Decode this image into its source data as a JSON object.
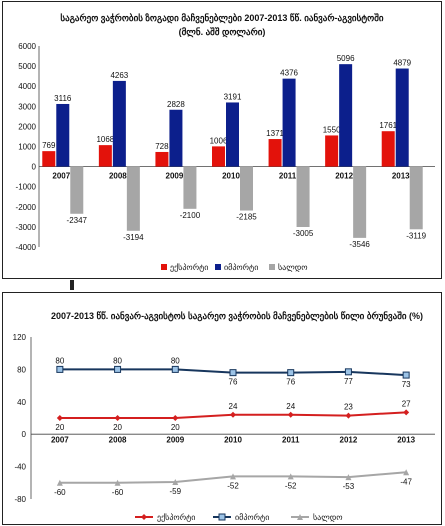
{
  "chart_data": [
    {
      "type": "bar",
      "title": "საგარეო ვაჭრობის ზოგადი მაჩვენებლები 2007-2013 წწ. იანვარ-აგვისტოში",
      "subtitle": "(მლნ. აშშ დოლარი)",
      "categories": [
        "2007",
        "2008",
        "2009",
        "2010",
        "2011",
        "2012",
        "2013"
      ],
      "series": [
        {
          "name": "ექსპორტი",
          "color": "#e3120b",
          "values": [
            769,
            1068,
            728,
            1006,
            1371,
            1550,
            1761
          ]
        },
        {
          "name": "იმპორტი",
          "color": "#0c1f8c",
          "values": [
            3116,
            4263,
            2828,
            3191,
            4376,
            5096,
            4879
          ]
        },
        {
          "name": "სალდო",
          "color": "#a6a6a6",
          "values": [
            -2347,
            -3194,
            -2100,
            -2185,
            -3005,
            -3546,
            -3119
          ]
        }
      ],
      "ylim": [
        -4000,
        6000
      ],
      "yticks": [
        -4000,
        -3000,
        -2000,
        -1000,
        0,
        1000,
        2000,
        3000,
        4000,
        5000,
        6000
      ],
      "legend": "bottom"
    },
    {
      "type": "line",
      "title": "2007-2013 წწ. იანვარ-აგვისტოს საგარეო ვაჭრობის მაჩვენებლების წილი ბრუნვაში (%)",
      "categories": [
        "2007",
        "2008",
        "2009",
        "2010",
        "2011",
        "2012",
        "2013"
      ],
      "series": [
        {
          "name": "ექსპორტი",
          "color": "#d41f1f",
          "values": [
            20,
            20,
            20,
            24,
            24,
            23,
            27
          ]
        },
        {
          "name": "იმპორტი",
          "color": "#17365d",
          "values": [
            80,
            80,
            80,
            76,
            76,
            77,
            73
          ]
        },
        {
          "name": "სალდო",
          "color": "#a6a6a6",
          "values": [
            -60,
            -60,
            -59,
            -52,
            -52,
            -53,
            -47
          ]
        }
      ],
      "ylim": [
        -80,
        120
      ],
      "yticks": [
        -80,
        -40,
        0,
        40,
        80,
        120
      ],
      "legend": "bottom"
    }
  ]
}
